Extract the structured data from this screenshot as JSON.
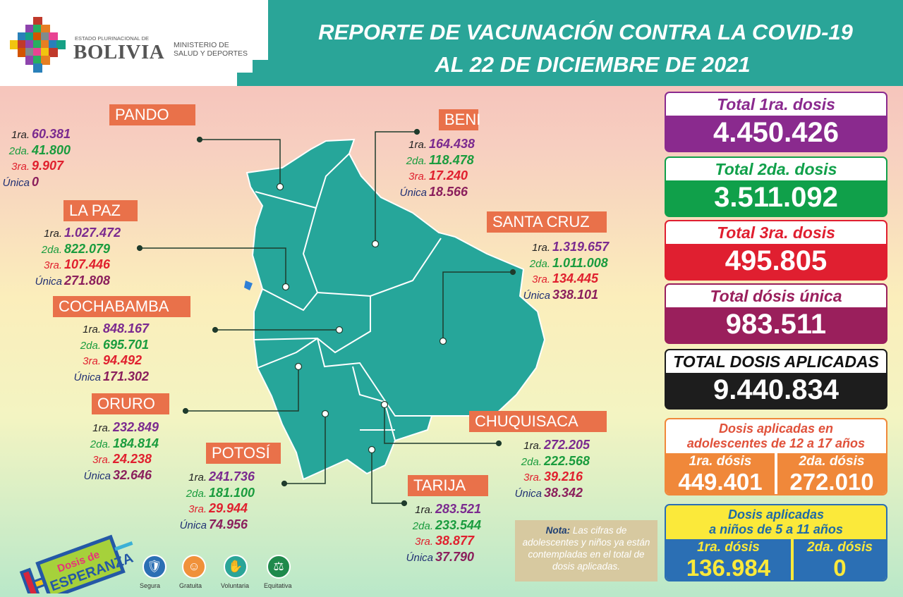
{
  "header": {
    "estado": "ESTADO PLURINACIONAL DE",
    "bolivia": "BOLIVIA",
    "ministerio_1": "MINISTERIO DE",
    "ministerio_2": "SALUD Y DEPORTES",
    "title_1": "REPORTE DE VACUNACIÓN CONTRA LA COVID-19",
    "title_2": "AL 22 DE DICIEMBRE DE 2021"
  },
  "dose_labels": {
    "first": "1ra.",
    "second": "2da.",
    "third": "3ra.",
    "single": "Única"
  },
  "colors": {
    "first": "#7b2a8f",
    "second": "#1a9c3e",
    "third": "#e0202e",
    "single": "#8b1f5c",
    "teal": "#2aa598",
    "label": "#e9714a"
  },
  "departments": [
    {
      "name": "PANDO",
      "first": "60.381",
      "second": "41.800",
      "third": "9.907",
      "single": "0"
    },
    {
      "name": "BENI",
      "first": "164.438",
      "second": "118.478",
      "third": "17.240",
      "single": "18.566"
    },
    {
      "name": "LA PAZ",
      "first": "1.027.472",
      "second": "822.079",
      "third": "107.446",
      "single": "271.808"
    },
    {
      "name": "SANTA CRUZ",
      "first": "1.319.657",
      "second": "1.011.008",
      "third": "134.445",
      "single": "338.101"
    },
    {
      "name": "COCHABAMBA",
      "first": "848.167",
      "second": "695.701",
      "third": "94.492",
      "single": "171.302"
    },
    {
      "name": "ORURO",
      "first": "232.849",
      "second": "184.814",
      "third": "24.238",
      "single": "32.646"
    },
    {
      "name": "POTOSÍ",
      "first": "241.736",
      "second": "181.100",
      "third": "29.944",
      "single": "74.956"
    },
    {
      "name": "CHUQUISACA",
      "first": "272.205",
      "second": "222.568",
      "third": "39.216",
      "single": "38.342"
    },
    {
      "name": "TARIJA",
      "first": "283.521",
      "second": "233.544",
      "third": "38.877",
      "single": "37.790"
    }
  ],
  "totals": [
    {
      "label": "Total 1ra. dosis",
      "value": "4.450.426",
      "color": "#8a2a8e"
    },
    {
      "label": "Total 2da. dosis",
      "value": "3.511.092",
      "color": "#10a04a"
    },
    {
      "label": "Total 3ra. dosis",
      "value": "495.805",
      "color": "#e01f30"
    },
    {
      "label": "Total dósis única",
      "value": "983.511",
      "color": "#9a1f5c"
    },
    {
      "label": "TOTAL DOSIS APLICADAS",
      "value": "9.440.834",
      "color": "#1d1d1d"
    }
  ],
  "adolescents": {
    "title_1": "Dosis aplicadas en",
    "title_2": "adolescentes de 12 a 17 años",
    "first_label": "1ra. dósis",
    "first": "449.401",
    "second_label": "2da. dósis",
    "second": "272.010"
  },
  "children": {
    "title_1": "Dosis aplicadas",
    "title_2": "a niños de 5 a 11 años",
    "first_label": "1ra. dósis",
    "first": "136.984",
    "second_label": "2da. dósis",
    "second": "0"
  },
  "note": {
    "bold": "Nota:",
    "text": "Las cifras de adolescentes y niños ya están contempladas en el total de dosis aplicadas."
  },
  "campaign": {
    "line1": "Dosis de",
    "line2": "ESPERANZA"
  },
  "values": [
    {
      "icon": "shield-icon",
      "label": "Segura"
    },
    {
      "icon": "smiley-icon",
      "label": "Gratuita"
    },
    {
      "icon": "hand-icon",
      "label": "Voluntaria"
    },
    {
      "icon": "scale-icon",
      "label": "Equitativa"
    }
  ]
}
